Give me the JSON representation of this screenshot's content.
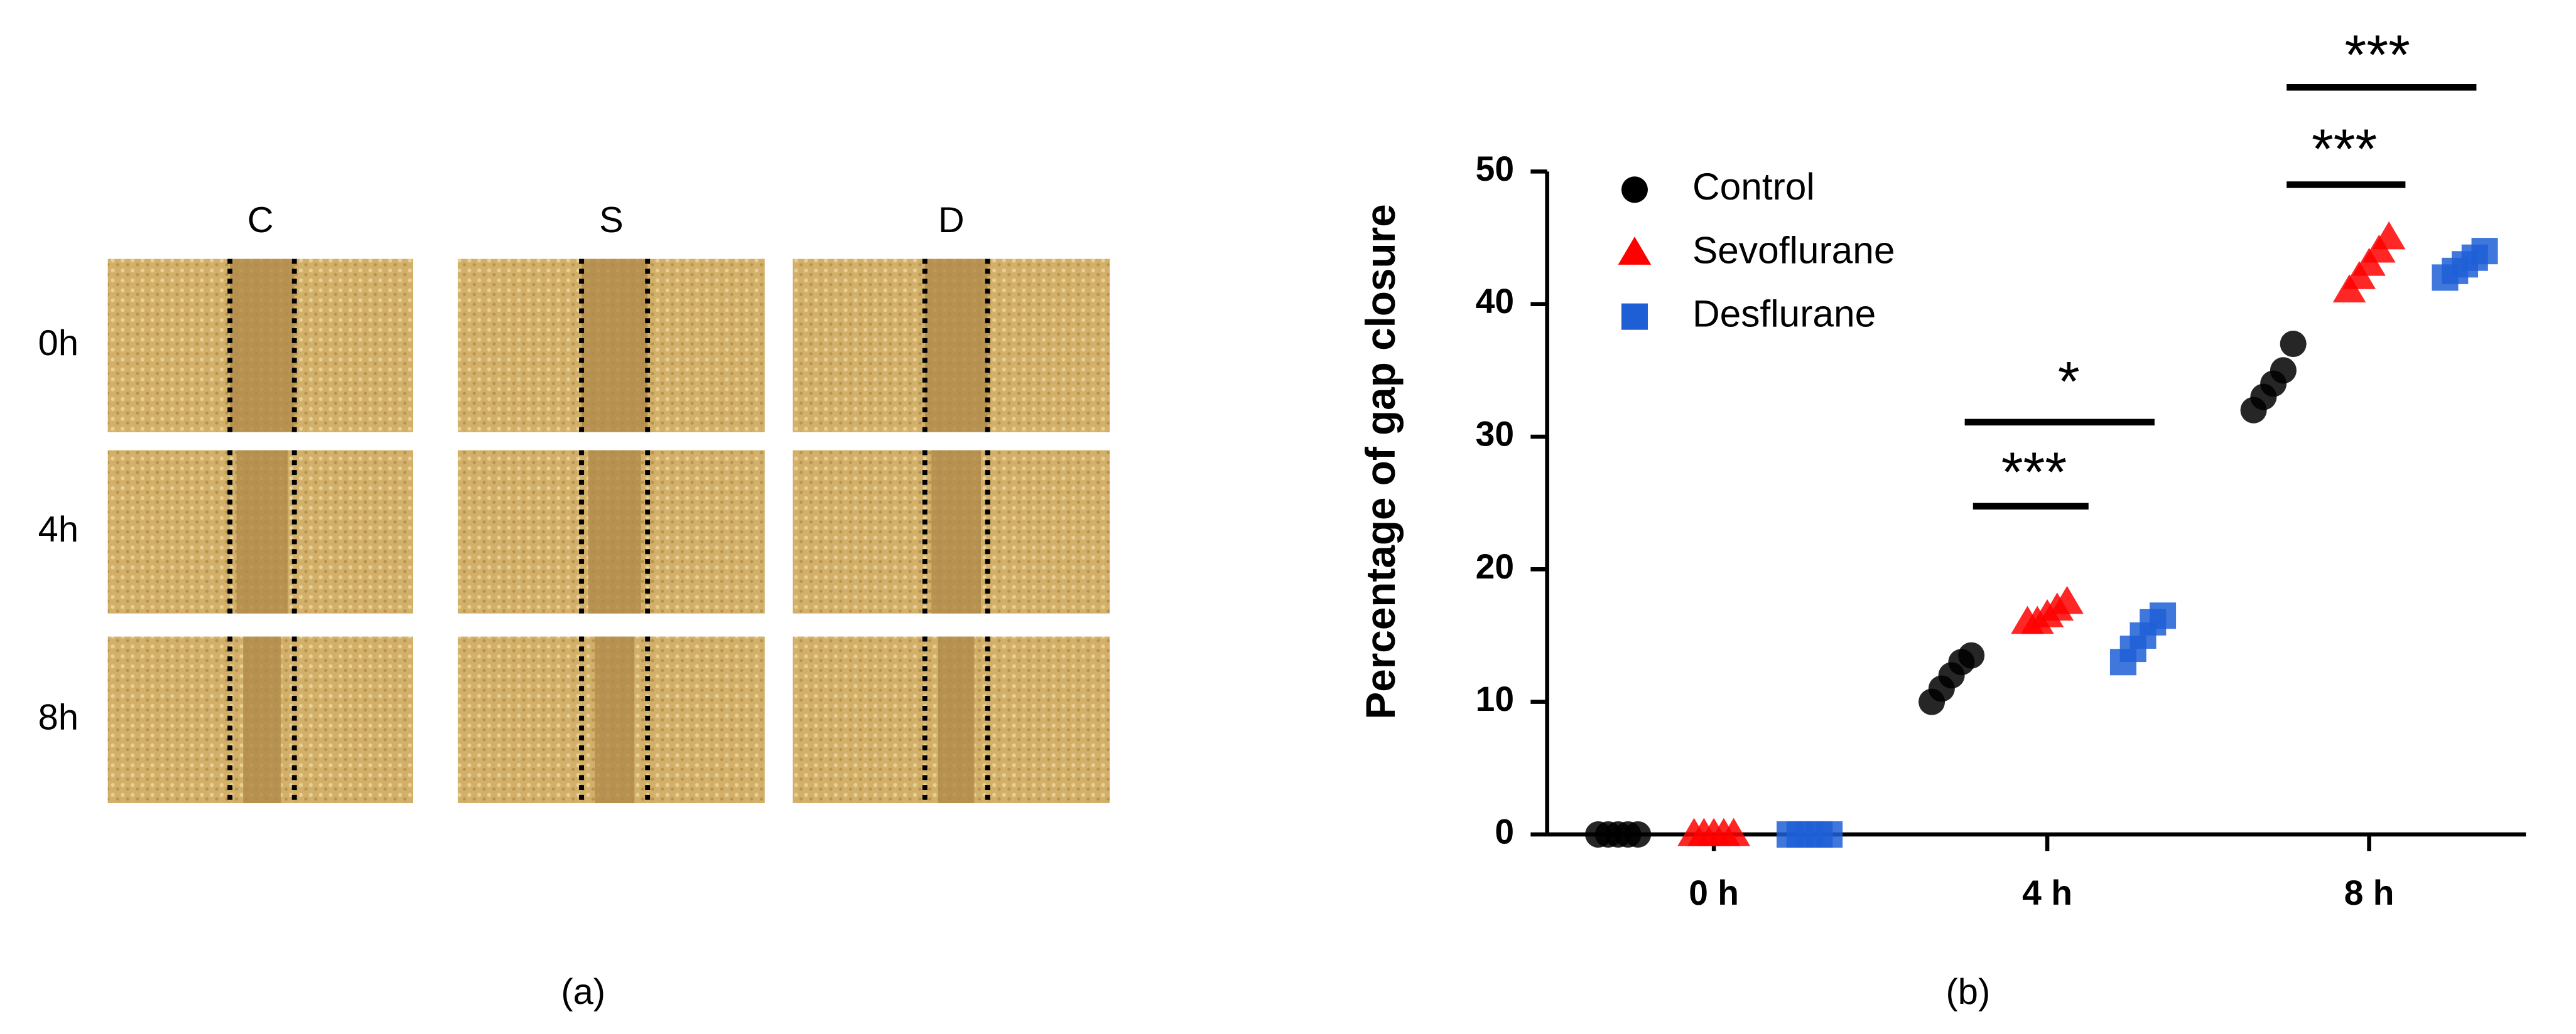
{
  "panel_labels": [
    "(a)",
    "(b)"
  ],
  "panel_a": {
    "columns": [
      "C",
      "S",
      "D"
    ],
    "rows": [
      "0h",
      "4h",
      "8h"
    ]
  },
  "chart_data": {
    "type": "scatter",
    "y_label": "Percentage of gap closure",
    "categories": [
      "0 h",
      "4 h",
      "8 h"
    ],
    "series": [
      {
        "name": "Control",
        "color": "#000000",
        "marker": "circle",
        "values": [
          [
            0,
            0,
            0,
            0,
            0
          ],
          [
            10,
            11,
            12,
            13,
            13.5
          ],
          [
            32,
            33,
            34,
            35,
            37
          ]
        ]
      },
      {
        "name": "Sevoflurane",
        "color": "#ff0000",
        "marker": "triangle",
        "values": [
          [
            0,
            0,
            0,
            0,
            0
          ],
          [
            16,
            16,
            16.5,
            17,
            17.5
          ],
          [
            41,
            42,
            43,
            44,
            45
          ]
        ]
      },
      {
        "name": "Desflurane",
        "color": "#1f5fd6",
        "marker": "square",
        "values": [
          [
            0,
            0,
            0,
            0,
            0
          ],
          [
            13,
            14,
            15,
            16,
            16.5
          ],
          [
            42,
            42.5,
            43,
            43.5,
            44
          ]
        ]
      }
    ],
    "ylim": [
      0,
      50
    ],
    "yticks": [
      0,
      10,
      20,
      30,
      40,
      50
    ],
    "annotations": [
      "***",
      "*",
      "***",
      "***"
    ]
  }
}
